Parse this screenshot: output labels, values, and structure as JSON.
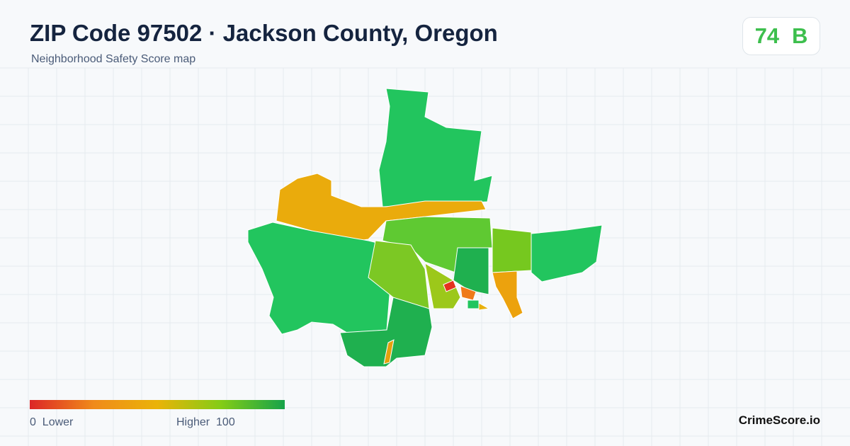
{
  "header": {
    "title": "ZIP Code 97502 · Jackson County, Oregon",
    "subtitle": "Neighborhood Safety Score map"
  },
  "badge": {
    "score": 74,
    "grade": "B"
  },
  "legend": {
    "min": 0,
    "min_label": "Lower",
    "max_label": "Higher",
    "max": 100
  },
  "footer": {
    "brand": "CrimeScore.io"
  }
}
